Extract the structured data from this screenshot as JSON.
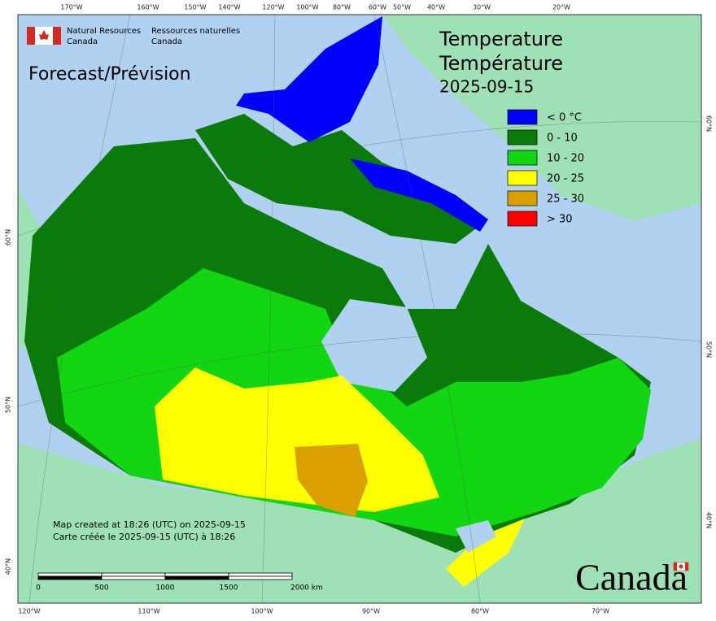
{
  "header": {
    "department_en": [
      "Natural Resources",
      "Canada"
    ],
    "department_fr": [
      "Ressources naturelles",
      "Canada"
    ],
    "product": "Forecast/Prévision"
  },
  "title": {
    "en": "Temperature",
    "fr": "Température",
    "date": "2025-09-15"
  },
  "legend": [
    {
      "label": "< 0 °C",
      "color": "#0000ff"
    },
    {
      "label": "0 - 10",
      "color": "#0a7a0a"
    },
    {
      "label": "10 - 20",
      "color": "#11d611"
    },
    {
      "label": "20 - 25",
      "color": "#ffff00"
    },
    {
      "label": "25 - 30",
      "color": "#d9a000"
    },
    {
      "label": "> 30",
      "color": "#ff0000"
    }
  ],
  "graticule": {
    "top": [
      "170°W",
      "160°W",
      "150°W",
      "140°W",
      "120°W",
      "100°W",
      "80°W",
      "60°W",
      "50°W",
      "40°W",
      "30°W",
      "20°W"
    ],
    "bottom": [
      "120°W",
      "110°W",
      "100°W",
      "90°W",
      "80°W",
      "70°W"
    ],
    "left": [
      "60°N",
      "50°N",
      "40°N"
    ],
    "right": [
      "60°N",
      "50°N",
      "40°N"
    ]
  },
  "footer": {
    "created_en": "Map created at 18:26 (UTC) on 2025-09-15",
    "created_fr": "Carte créée le 2025-09-15 (UTC) à 18:26",
    "scale": [
      "0",
      "500",
      "1000",
      "1500",
      "2000 km"
    ],
    "wordmark": "Canada"
  }
}
